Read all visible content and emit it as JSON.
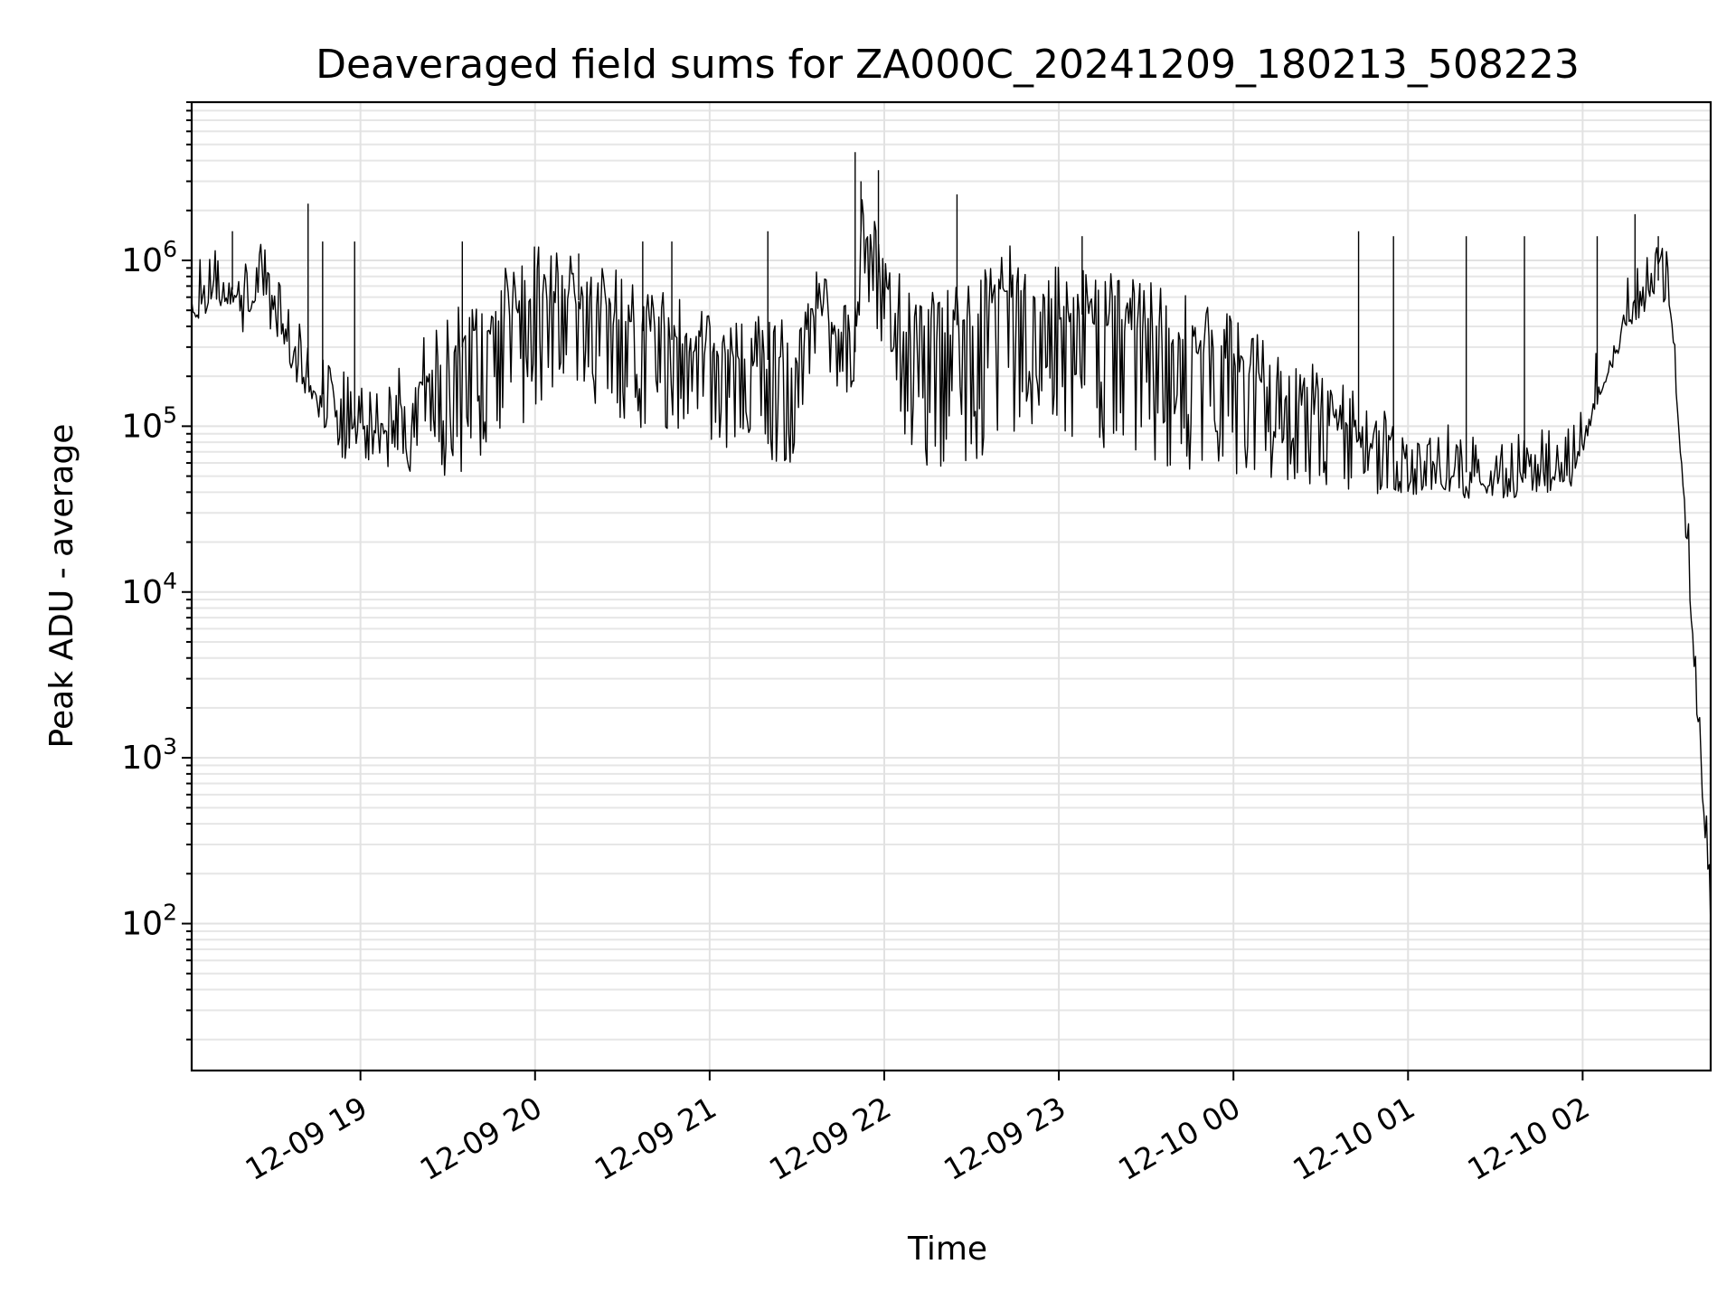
{
  "chart_data": {
    "type": "line",
    "title": "Deaveraged field sums for ZA000C_20241209_180213_508223",
    "xlabel": "Time",
    "ylabel": "Peak ADU - average",
    "yscale": "log",
    "ylim": [
      13,
      9000000
    ],
    "xlim": [
      "2024-12-09 18:02",
      "2024-12-10 02:44"
    ],
    "grid": true,
    "x_ticks": [
      {
        "t": "2024-12-09 19:00",
        "label": "12-09 19"
      },
      {
        "t": "2024-12-09 20:00",
        "label": "12-09 20"
      },
      {
        "t": "2024-12-09 21:00",
        "label": "12-09 21"
      },
      {
        "t": "2024-12-09 22:00",
        "label": "12-09 22"
      },
      {
        "t": "2024-12-09 23:00",
        "label": "12-09 23"
      },
      {
        "t": "2024-12-10 00:00",
        "label": "12-10 00"
      },
      {
        "t": "2024-12-10 01:00",
        "label": "12-10 01"
      },
      {
        "t": "2024-12-10 02:00",
        "label": "12-10 02"
      }
    ],
    "y_ticks": [
      {
        "v": 100,
        "base": "10",
        "exp": "2"
      },
      {
        "v": 1000,
        "base": "10",
        "exp": "3"
      },
      {
        "v": 10000,
        "base": "10",
        "exp": "4"
      },
      {
        "v": 100000,
        "base": "10",
        "exp": "5"
      },
      {
        "v": 1000000,
        "base": "10",
        "exp": "6"
      }
    ],
    "series": [
      {
        "color": "#000000",
        "points": [
          {
            "t": "2024-12-09 18:02",
            "base": 500000,
            "low": 420000
          },
          {
            "t": "2024-12-09 18:10",
            "base": 620000,
            "low": 500000
          },
          {
            "t": "2024-12-09 18:18",
            "base": 680000,
            "low": 560000
          },
          {
            "t": "2024-12-09 18:22",
            "base": 520000,
            "low": 170000
          },
          {
            "t": "2024-12-09 18:26",
            "base": 700000,
            "low": 450000
          },
          {
            "t": "2024-12-09 18:33",
            "base": 420000,
            "low": 300000
          },
          {
            "t": "2024-12-09 18:38",
            "base": 240000,
            "low": 170000
          },
          {
            "t": "2024-12-09 18:45",
            "base": 170000,
            "low": 110000
          },
          {
            "t": "2024-12-09 18:55",
            "base": 110000,
            "low": 60000
          },
          {
            "t": "2024-12-09 19:10",
            "base": 100000,
            "low": 55000
          },
          {
            "t": "2024-12-09 19:25",
            "base": 220000,
            "low": 45000
          },
          {
            "t": "2024-12-09 19:40",
            "base": 350000,
            "low": 55000
          },
          {
            "t": "2024-12-09 20:00",
            "base": 650000,
            "low": 120000
          },
          {
            "t": "2024-12-09 20:20",
            "base": 550000,
            "low": 130000
          },
          {
            "t": "2024-12-09 20:40",
            "base": 350000,
            "low": 80000
          },
          {
            "t": "2024-12-09 21:00",
            "base": 300000,
            "low": 60000
          },
          {
            "t": "2024-12-09 21:30",
            "base": 230000,
            "low": 60000
          },
          {
            "t": "2024-12-09 21:35",
            "base": 500000,
            "low": 180000
          },
          {
            "t": "2024-12-09 21:50",
            "base": 280000,
            "low": 150000
          },
          {
            "t": "2024-12-09 21:52",
            "base": 1500000,
            "low": 600000
          },
          {
            "t": "2024-12-09 22:00",
            "base": 700000,
            "low": 250000
          },
          {
            "t": "2024-12-09 22:10",
            "base": 300000,
            "low": 50000
          },
          {
            "t": "2024-12-09 22:30",
            "base": 450000,
            "low": 60000
          },
          {
            "t": "2024-12-09 22:40",
            "base": 700000,
            "low": 80000
          },
          {
            "t": "2024-12-09 23:00",
            "base": 500000,
            "low": 90000
          },
          {
            "t": "2024-12-09 23:30",
            "base": 400000,
            "low": 60000
          },
          {
            "t": "2024-12-10 00:00",
            "base": 250000,
            "low": 45000
          },
          {
            "t": "2024-12-10 00:30",
            "base": 120000,
            "low": 40000
          },
          {
            "t": "2024-12-10 00:55",
            "base": 60000,
            "low": 38000
          },
          {
            "t": "2024-12-10 01:30",
            "base": 50000,
            "low": 36000
          },
          {
            "t": "2024-12-10 01:56",
            "base": 55000,
            "low": 40000
          },
          {
            "t": "2024-12-10 02:05",
            "base": 160000,
            "low": 130000
          },
          {
            "t": "2024-12-10 02:15",
            "base": 450000,
            "low": 350000
          },
          {
            "t": "2024-12-10 02:25",
            "base": 800000,
            "low": 600000
          },
          {
            "t": "2024-12-10 02:30",
            "base": 600000,
            "low": 500000
          },
          {
            "t": "2024-12-10 02:36",
            "base": 20000,
            "low": 15000
          },
          {
            "t": "2024-12-10 02:38",
            "base": 4500,
            "low": 4000
          },
          {
            "t": "2024-12-10 02:41",
            "base": 800,
            "low": 600
          },
          {
            "t": "2024-12-10 02:44",
            "base": 100,
            "low": 100
          }
        ],
        "spikes": [
          {
            "t": "2024-12-09 18:16",
            "v": 1500000
          },
          {
            "t": "2024-12-09 18:42",
            "v": 2200000
          },
          {
            "t": "2024-12-09 18:47",
            "v": 1300000
          },
          {
            "t": "2024-12-09 18:58",
            "v": 1300000
          },
          {
            "t": "2024-12-09 19:35",
            "v": 1300000
          },
          {
            "t": "2024-12-09 20:15",
            "v": 1100000
          },
          {
            "t": "2024-12-09 20:37",
            "v": 1300000
          },
          {
            "t": "2024-12-09 20:47",
            "v": 1300000
          },
          {
            "t": "2024-12-09 21:20",
            "v": 1500000
          },
          {
            "t": "2024-12-09 21:50",
            "v": 4500000
          },
          {
            "t": "2024-12-09 21:52",
            "v": 3000000
          },
          {
            "t": "2024-12-09 21:58",
            "v": 3500000
          },
          {
            "t": "2024-12-09 22:25",
            "v": 2500000
          },
          {
            "t": "2024-12-09 23:08",
            "v": 1400000
          },
          {
            "t": "2024-12-10 00:43",
            "v": 1500000
          },
          {
            "t": "2024-12-10 00:55",
            "v": 1400000
          },
          {
            "t": "2024-12-10 01:20",
            "v": 1400000
          },
          {
            "t": "2024-12-10 01:40",
            "v": 1400000
          },
          {
            "t": "2024-12-10 02:05",
            "v": 1400000
          },
          {
            "t": "2024-12-10 02:18",
            "v": 1900000
          },
          {
            "t": "2024-12-10 02:26",
            "v": 1400000
          }
        ]
      }
    ]
  }
}
